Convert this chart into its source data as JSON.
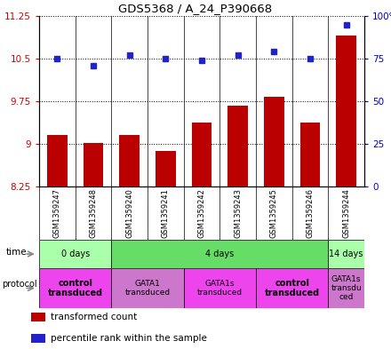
{
  "title": "GDS5368 / A_24_P390668",
  "samples": [
    "GSM1359247",
    "GSM1359248",
    "GSM1359240",
    "GSM1359241",
    "GSM1359242",
    "GSM1359243",
    "GSM1359245",
    "GSM1359246",
    "GSM1359244"
  ],
  "bar_values": [
    9.15,
    9.02,
    9.16,
    8.88,
    9.38,
    9.67,
    9.83,
    9.38,
    10.9
  ],
  "bar_base": 8.25,
  "dot_values_pct": [
    75,
    71,
    77,
    75,
    74,
    77,
    79,
    75,
    95
  ],
  "ylim_left": [
    8.25,
    11.25
  ],
  "ylim_right": [
    0,
    100
  ],
  "yticks_left": [
    8.25,
    9.0,
    9.75,
    10.5,
    11.25
  ],
  "yticks_left_labels": [
    "8.25",
    "9",
    "9.75",
    "10.5",
    "11.25"
  ],
  "yticks_right": [
    0,
    25,
    50,
    75,
    100
  ],
  "yticks_right_labels": [
    "0",
    "25",
    "50",
    "75",
    "100%"
  ],
  "bar_color": "#bb0000",
  "dot_color": "#2222cc",
  "time_groups": [
    {
      "label": "0 days",
      "start": 0,
      "end": 2,
      "color": "#aaffaa"
    },
    {
      "label": "4 days",
      "start": 2,
      "end": 8,
      "color": "#66dd66"
    },
    {
      "label": "14 days",
      "start": 8,
      "end": 9,
      "color": "#aaffaa"
    }
  ],
  "protocol_groups": [
    {
      "label": "control\ntransduced",
      "start": 0,
      "end": 2,
      "color": "#ee44ee",
      "bold": true
    },
    {
      "label": "GATA1\ntransduced",
      "start": 2,
      "end": 4,
      "color": "#cc77cc",
      "bold": false
    },
    {
      "label": "GATA1s\ntransduced",
      "start": 4,
      "end": 6,
      "color": "#ee44ee",
      "bold": false
    },
    {
      "label": "control\ntransduced",
      "start": 6,
      "end": 8,
      "color": "#ee44ee",
      "bold": true
    },
    {
      "label": "GATA1s\ntransdu\nced",
      "start": 8,
      "end": 9,
      "color": "#cc77cc",
      "bold": false
    }
  ],
  "legend_items": [
    {
      "color": "#bb0000",
      "label": "transformed count"
    },
    {
      "color": "#2222cc",
      "label": "percentile rank within the sample"
    }
  ],
  "left_tick_color": "#cc0000",
  "right_tick_color": "#0000bb",
  "bg_color": "#ffffff"
}
